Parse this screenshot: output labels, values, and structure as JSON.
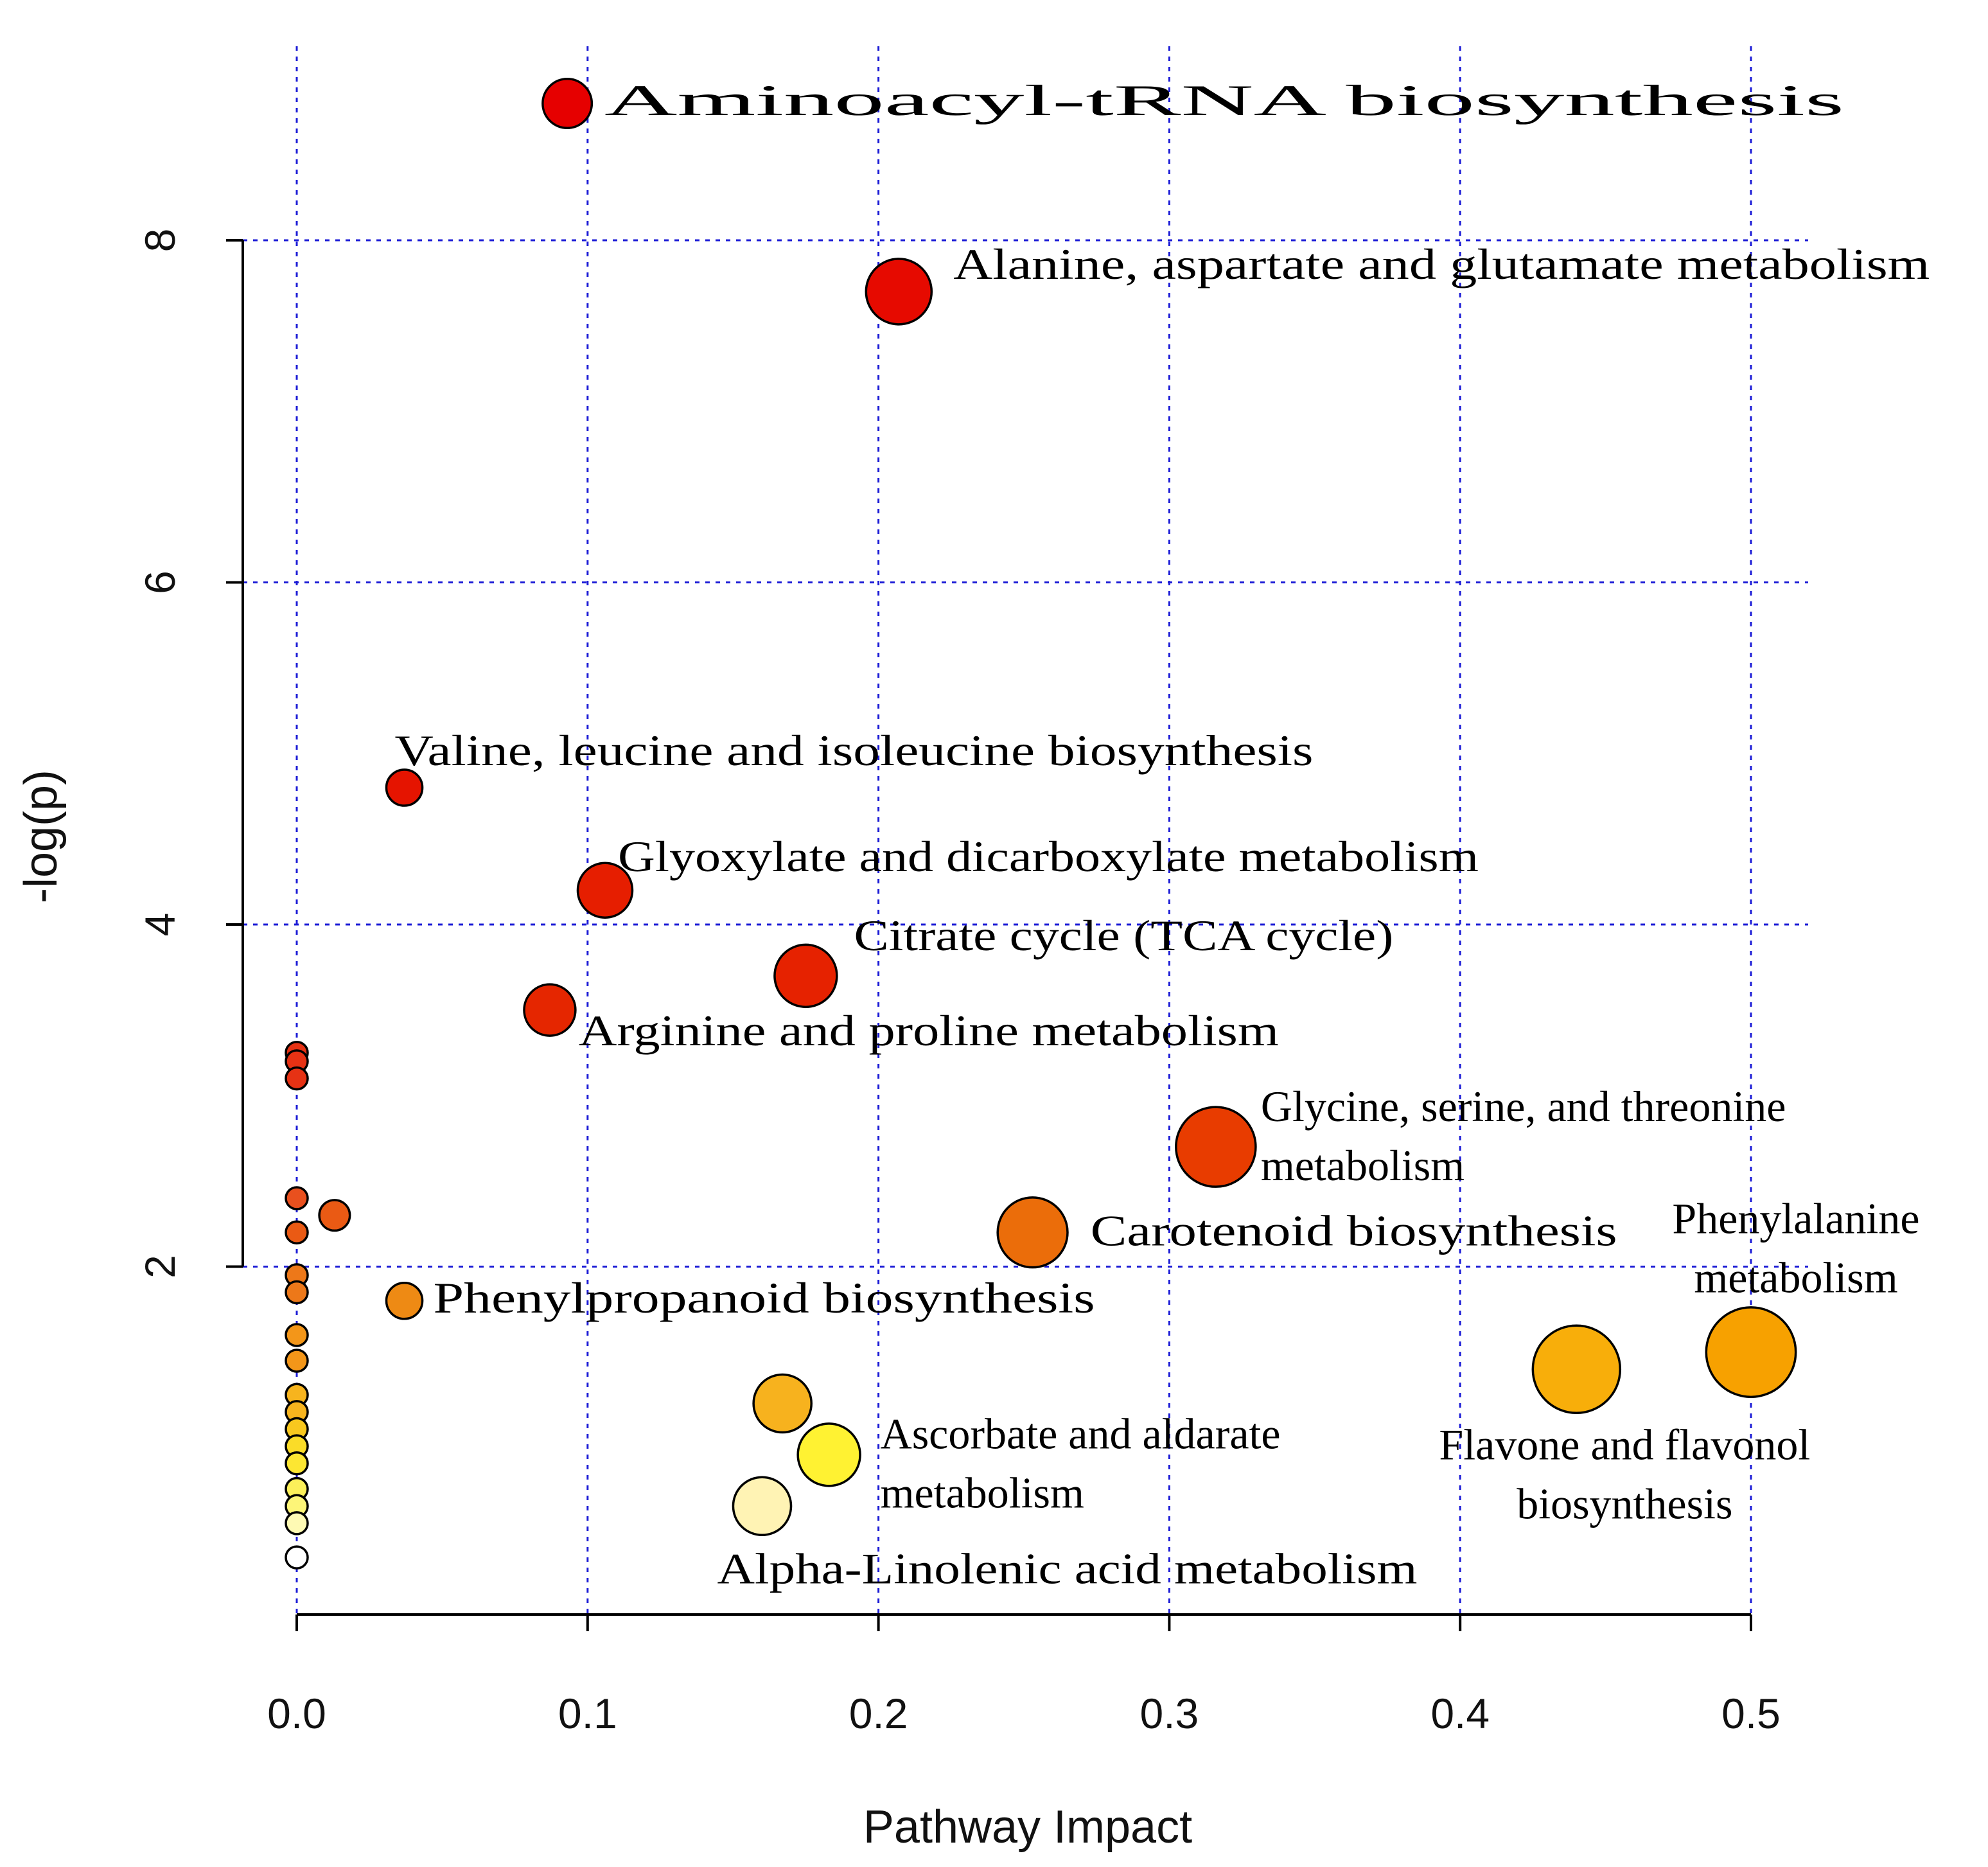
{
  "chart_data": {
    "type": "scatter",
    "title": "",
    "xlabel": "Pathway Impact",
    "ylabel": "-log(p)",
    "xlim": [
      0,
      0.5
    ],
    "ylim": [
      0,
      8
    ],
    "x_ticks": [
      "0.0",
      "0.1",
      "0.2",
      "0.3",
      "0.4",
      "0.5"
    ],
    "y_ticks": [
      "2",
      "4",
      "6",
      "8"
    ],
    "grid": true,
    "grid_style": "dotted blue",
    "points": [
      {
        "label": "Aminoacyl-tRNA biosynthesis",
        "x": 0.093,
        "y": 8.8,
        "size": 0.45,
        "color": "#e60000"
      },
      {
        "label": "Alanine, aspartate and glutamate metabolism",
        "x": 0.207,
        "y": 7.7,
        "size": 0.6,
        "color": "#e60a00"
      },
      {
        "label": "Valine, leucine and isoleucine biosynthesis",
        "x": 0.037,
        "y": 4.8,
        "size": 0.33,
        "color": "#e51400"
      },
      {
        "label": "Glyoxylate and dicarboxylate metabolism",
        "x": 0.106,
        "y": 4.2,
        "size": 0.5,
        "color": "#e61e00"
      },
      {
        "label": "Citrate cycle (TCA cycle)",
        "x": 0.175,
        "y": 3.7,
        "size": 0.57,
        "color": "#e62200"
      },
      {
        "label": "Arginine and proline metabolism",
        "x": 0.087,
        "y": 3.5,
        "size": 0.47,
        "color": "#e52600"
      },
      {
        "label": "Glycine, serine, and threonine metabolism",
        "x": 0.316,
        "y": 2.7,
        "size": 0.73,
        "color": "#e83c00"
      },
      {
        "label": "Carotenoid biosynthesis",
        "x": 0.253,
        "y": 2.2,
        "size": 0.64,
        "color": "#eb6d0a"
      },
      {
        "label": "Phenylpropanoid biosynthesis",
        "x": 0.037,
        "y": 1.8,
        "size": 0.33,
        "color": "#ee8a14"
      },
      {
        "label": "Phenylalanine metabolism",
        "x": 0.5,
        "y": 1.5,
        "size": 0.82,
        "color": "#f7a100"
      },
      {
        "label": "Flavone and flavonol biosynthesis",
        "x": 0.44,
        "y": 1.4,
        "size": 0.8,
        "color": "#f8ae0a"
      },
      {
        "label": "",
        "x": 0.167,
        "y": 1.2,
        "size": 0.53,
        "color": "#f7b21e"
      },
      {
        "label": "Ascorbate and aldarate metabolism",
        "x": 0.183,
        "y": 0.9,
        "size": 0.57,
        "color": "#fff232"
      },
      {
        "label": "Alpha-Linolenic acid metabolism",
        "x": 0.16,
        "y": 0.6,
        "size": 0.53,
        "color": "#fff3b4"
      },
      {
        "label": "",
        "x": 0.0,
        "y": 3.25,
        "size": 0.2,
        "color": "#e63214"
      },
      {
        "label": "",
        "x": 0.0,
        "y": 3.2,
        "size": 0.2,
        "color": "#e63214"
      },
      {
        "label": "",
        "x": 0.0,
        "y": 3.1,
        "size": 0.2,
        "color": "#e63214"
      },
      {
        "label": "",
        "x": 0.0,
        "y": 2.4,
        "size": 0.2,
        "color": "#e9501e"
      },
      {
        "label": "",
        "x": 0.0,
        "y": 2.2,
        "size": 0.2,
        "color": "#ea5a14"
      },
      {
        "label": "",
        "x": 0.013,
        "y": 2.3,
        "size": 0.28,
        "color": "#ea5a14"
      },
      {
        "label": "",
        "x": 0.0,
        "y": 1.95,
        "size": 0.2,
        "color": "#ed7819"
      },
      {
        "label": "",
        "x": 0.0,
        "y": 1.85,
        "size": 0.2,
        "color": "#ed7819"
      },
      {
        "label": "",
        "x": 0.0,
        "y": 1.6,
        "size": 0.2,
        "color": "#f39619"
      },
      {
        "label": "",
        "x": 0.0,
        "y": 1.45,
        "size": 0.2,
        "color": "#f39619"
      },
      {
        "label": "",
        "x": 0.0,
        "y": 1.25,
        "size": 0.2,
        "color": "#f7b41e"
      },
      {
        "label": "",
        "x": 0.0,
        "y": 1.15,
        "size": 0.2,
        "color": "#f7b41e"
      },
      {
        "label": "",
        "x": 0.0,
        "y": 1.05,
        "size": 0.2,
        "color": "#f8c81e"
      },
      {
        "label": "",
        "x": 0.0,
        "y": 0.95,
        "size": 0.2,
        "color": "#fadc28"
      },
      {
        "label": "",
        "x": 0.0,
        "y": 0.85,
        "size": 0.2,
        "color": "#fce632"
      },
      {
        "label": "",
        "x": 0.0,
        "y": 0.7,
        "size": 0.2,
        "color": "#fcf05a"
      },
      {
        "label": "",
        "x": 0.0,
        "y": 0.6,
        "size": 0.2,
        "color": "#fdf578"
      },
      {
        "label": "",
        "x": 0.0,
        "y": 0.5,
        "size": 0.2,
        "color": "#fefab4"
      },
      {
        "label": "",
        "x": 0.0,
        "y": 0.3,
        "size": 0.2,
        "color": "#ffffff"
      }
    ]
  }
}
